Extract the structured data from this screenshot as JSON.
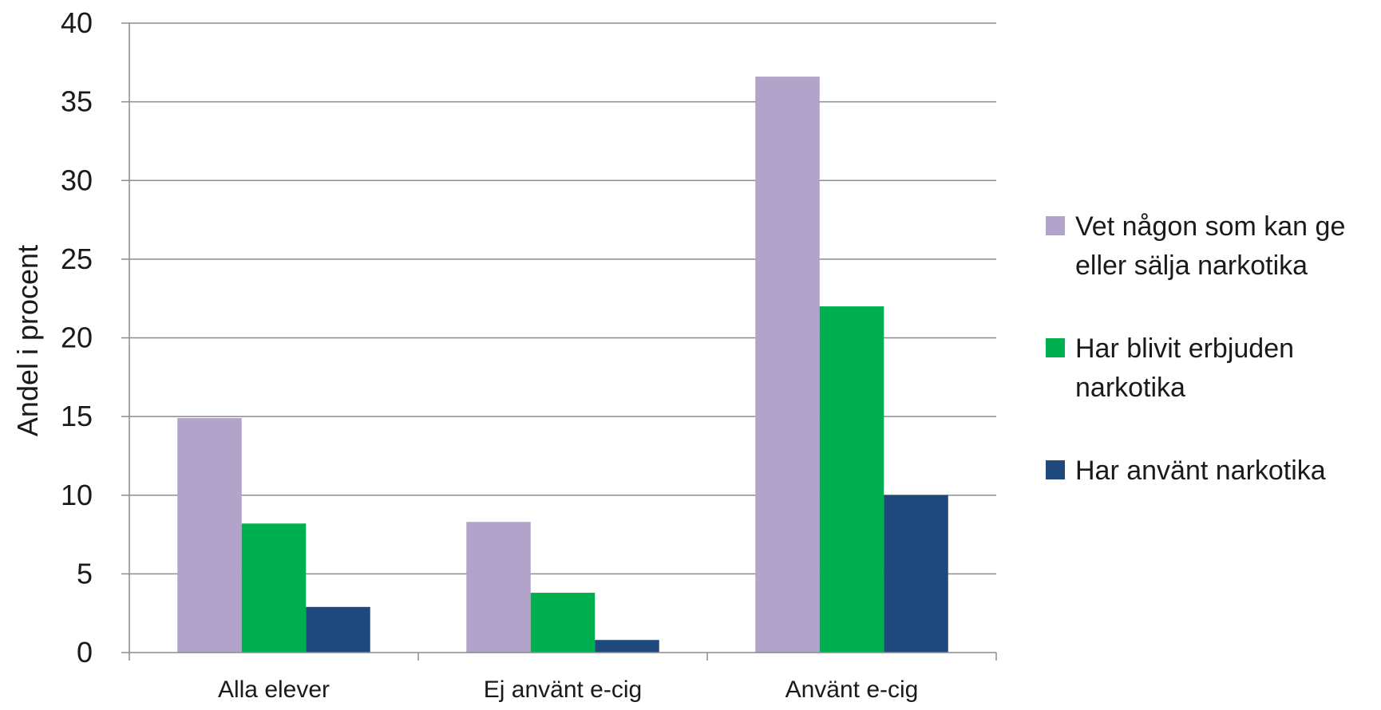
{
  "chart_data": {
    "type": "bar",
    "title": "",
    "xlabel": "",
    "ylabel": "Andel i procent",
    "ylim": [
      0,
      40
    ],
    "yticks": [
      0,
      5,
      10,
      15,
      20,
      25,
      30,
      35,
      40
    ],
    "grid": true,
    "legend_position": "right",
    "categories": [
      "Alla elever",
      "Ej använt e-cig",
      "Använt e-cig"
    ],
    "series": [
      {
        "name": "Vet någon som kan ge eller sälja narkotika",
        "legend_lines": [
          "Vet någon som kan ge",
          "eller sälja narkotika"
        ],
        "color": "#B1A3C9",
        "values": [
          14.9,
          8.3,
          36.6
        ]
      },
      {
        "name": "Har blivit erbjuden narkotika",
        "legend_lines": [
          "Har blivit erbjuden",
          "narkotika"
        ],
        "color": "#00AF50",
        "values": [
          8.2,
          3.8,
          22.0
        ]
      },
      {
        "name": "Har använt narkotika",
        "legend_lines": [
          "Har använt narkotika"
        ],
        "color": "#1F497D",
        "values": [
          2.9,
          0.8,
          10.0
        ]
      }
    ]
  }
}
